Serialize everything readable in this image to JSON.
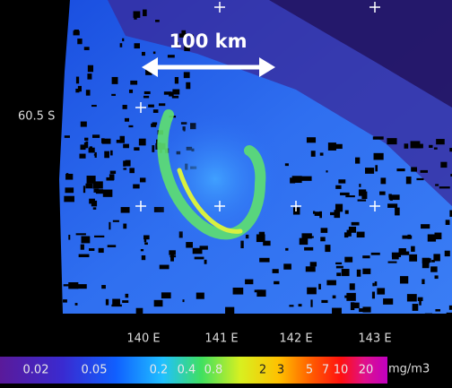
{
  "scale_bar": {
    "label": "100 km"
  },
  "latitude_labels": [
    "60.5 S"
  ],
  "longitude_labels": [
    "140 E",
    "141 E",
    "142 E",
    "143 E"
  ],
  "colorbar": {
    "labels": [
      "0.02",
      "0.05",
      "0.2",
      "0.4",
      "0.8",
      "2",
      "3",
      "5",
      "7",
      "10",
      "20"
    ],
    "unit": "mg/m3"
  }
}
